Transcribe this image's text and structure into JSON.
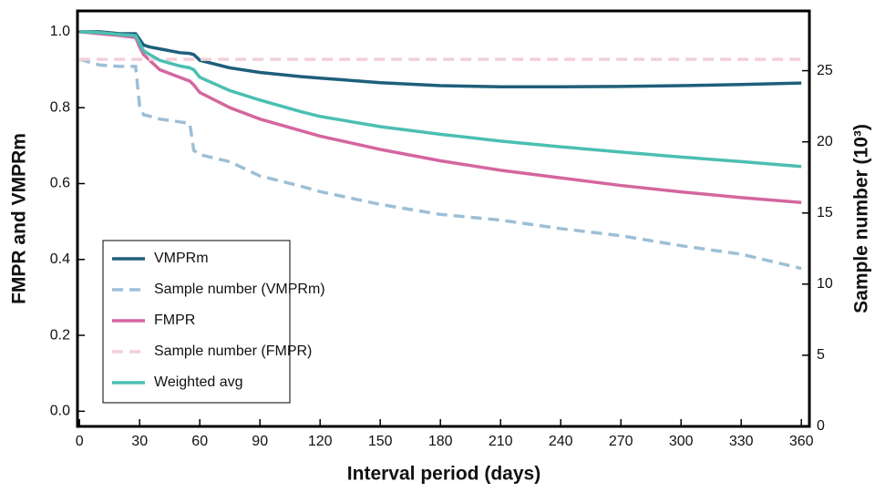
{
  "chart_data": {
    "type": "line",
    "xlabel": "Interval period (days)",
    "ylabel": "FMPR and VMPRm",
    "y2label": "Sample number (10³)",
    "x": [
      0,
      10,
      20,
      28,
      30,
      32,
      35,
      40,
      50,
      55,
      57,
      60,
      75,
      90,
      110,
      120,
      150,
      180,
      210,
      240,
      270,
      300,
      330,
      360
    ],
    "series": [
      {
        "name": "VMPRm",
        "color": "#1f5f7a",
        "linestyle": "solid",
        "values": [
          1.0,
          1.0,
          0.995,
          0.995,
          0.98,
          0.965,
          0.96,
          0.955,
          0.945,
          0.943,
          0.94,
          0.925,
          0.905,
          0.893,
          0.882,
          0.878,
          0.866,
          0.858,
          0.855,
          0.855,
          0.856,
          0.858,
          0.861,
          0.865
        ]
      },
      {
        "name": "Sample number (VMPRm)",
        "color": "#9dbfd6",
        "linestyle": "dashed",
        "axis": "y2",
        "values": [
          25.8,
          25.4,
          25.3,
          25.3,
          22.5,
          21.9,
          21.8,
          21.6,
          21.4,
          21.3,
          19.4,
          19.1,
          18.6,
          17.6,
          16.9,
          16.5,
          15.6,
          14.9,
          14.5,
          13.9,
          13.4,
          12.7,
          12.1,
          11.1
        ]
      },
      {
        "name": "FMPR",
        "color": "#d4669f",
        "linestyle": "solid",
        "values": [
          1.0,
          0.995,
          0.99,
          0.985,
          0.96,
          0.94,
          0.925,
          0.9,
          0.88,
          0.87,
          0.86,
          0.84,
          0.8,
          0.77,
          0.74,
          0.725,
          0.69,
          0.66,
          0.635,
          0.615,
          0.595,
          0.578,
          0.563,
          0.55
        ]
      },
      {
        "name": "Sample number (FMPR)",
        "color": "#f2cfdc",
        "linestyle": "dashed",
        "axis": "y2",
        "values": [
          25.8,
          25.8,
          25.8,
          25.8,
          25.8,
          25.8,
          25.8,
          25.8,
          25.8,
          25.8,
          25.8,
          25.8,
          25.8,
          25.8,
          25.8,
          25.8,
          25.8,
          25.8,
          25.8,
          25.8,
          25.8,
          25.8,
          25.8,
          25.8
        ]
      },
      {
        "name": "Weighted avg",
        "color": "#4bbfb2",
        "linestyle": "solid",
        "values": [
          1.0,
          0.998,
          0.993,
          0.99,
          0.97,
          0.95,
          0.94,
          0.925,
          0.91,
          0.905,
          0.9,
          0.88,
          0.845,
          0.82,
          0.79,
          0.777,
          0.75,
          0.73,
          0.712,
          0.697,
          0.683,
          0.67,
          0.658,
          0.645
        ]
      }
    ],
    "xlim": [
      -1,
      364
    ],
    "xticks": [
      0,
      30,
      60,
      90,
      120,
      150,
      180,
      210,
      240,
      270,
      300,
      330,
      360
    ],
    "ylim": [
      -0.04,
      1.055
    ],
    "yticks": [
      {
        "value": 0,
        "label": "0.0"
      },
      0.2,
      0.4,
      0.6,
      0.8,
      {
        "value": 1,
        "label": "1.0"
      }
    ],
    "y2lim": [
      0,
      29.2
    ],
    "y2ticks": [
      0,
      5,
      10,
      15,
      20,
      25
    ],
    "legend": "lower left"
  }
}
